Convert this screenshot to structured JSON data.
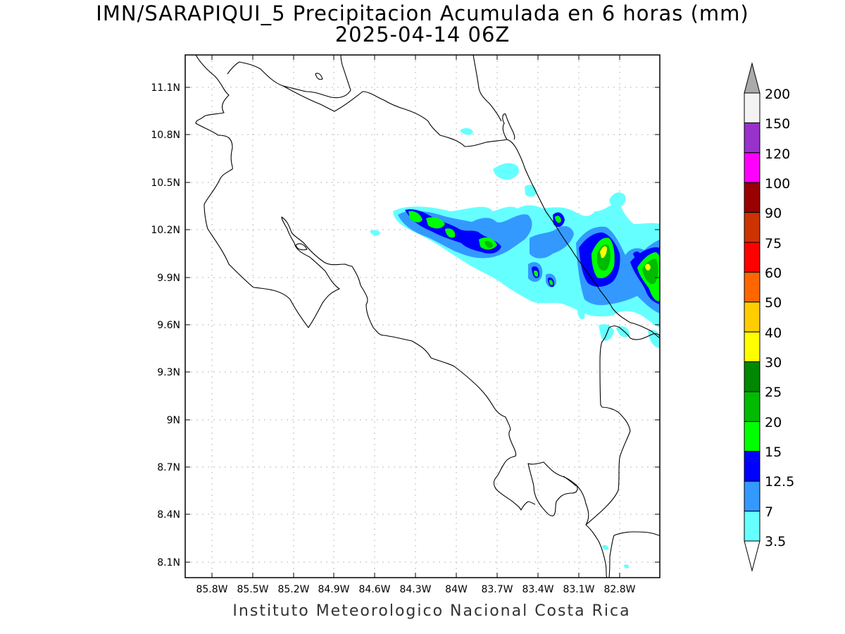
{
  "title": {
    "line1": "IMN/SARAPIQUI_5 Precipitacion Acumulada en 6 horas (mm)",
    "line2": "2025-04-14 06Z"
  },
  "footer": "Instituto Meteorologico Nacional Costa Rica",
  "map": {
    "lon_range": [
      -86.0,
      -82.6
    ],
    "lat_range": [
      8.0,
      11.3
    ],
    "lat_ticks": [
      "11.1N",
      "10.8N",
      "10.5N",
      "10.2N",
      "9.9N",
      "9.6N",
      "9.3N",
      "9N",
      "8.7N",
      "8.4N",
      "8.1N"
    ],
    "lon_ticks": [
      "85.8W",
      "85.5W",
      "85.2W",
      "84.9W",
      "84.6W",
      "84.3W",
      "84W",
      "83.7W",
      "83.4W",
      "83.1W",
      "82.8W"
    ],
    "grid": "dotted"
  },
  "legend": {
    "levels": [
      "200",
      "150",
      "120",
      "100",
      "90",
      "75",
      "60",
      "50",
      "40",
      "30",
      "25",
      "20",
      "15",
      "12.5",
      "7",
      "3.5"
    ],
    "colors": [
      "#aaaaaa",
      "#f3f3f3",
      "#9932cc",
      "#ff00ff",
      "#990000",
      "#cc3300",
      "#ff0000",
      "#ff6600",
      "#ffcc00",
      "#ffff00",
      "#008800",
      "#00bb00",
      "#00ff00",
      "#0000ff",
      "#3399ff",
      "#66ffff",
      "#ffffff"
    ]
  }
}
